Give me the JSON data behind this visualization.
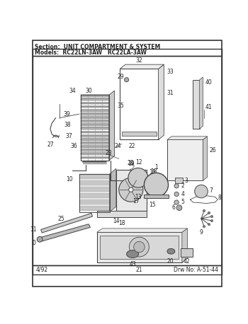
{
  "title_section": "Section:  UNIT COMPARTMENT & SYSTEM",
  "title_models": "Models:  RC22LN-3AW   RC22LA-3AW",
  "footer_left": "4/92",
  "footer_right": "Drw No: A-51-44",
  "bg_color": "#ffffff",
  "border_color": "#333333",
  "line_color": "#444444",
  "text_color": "#222222",
  "figsize": [
    3.5,
    4.58
  ],
  "dpi": 100
}
